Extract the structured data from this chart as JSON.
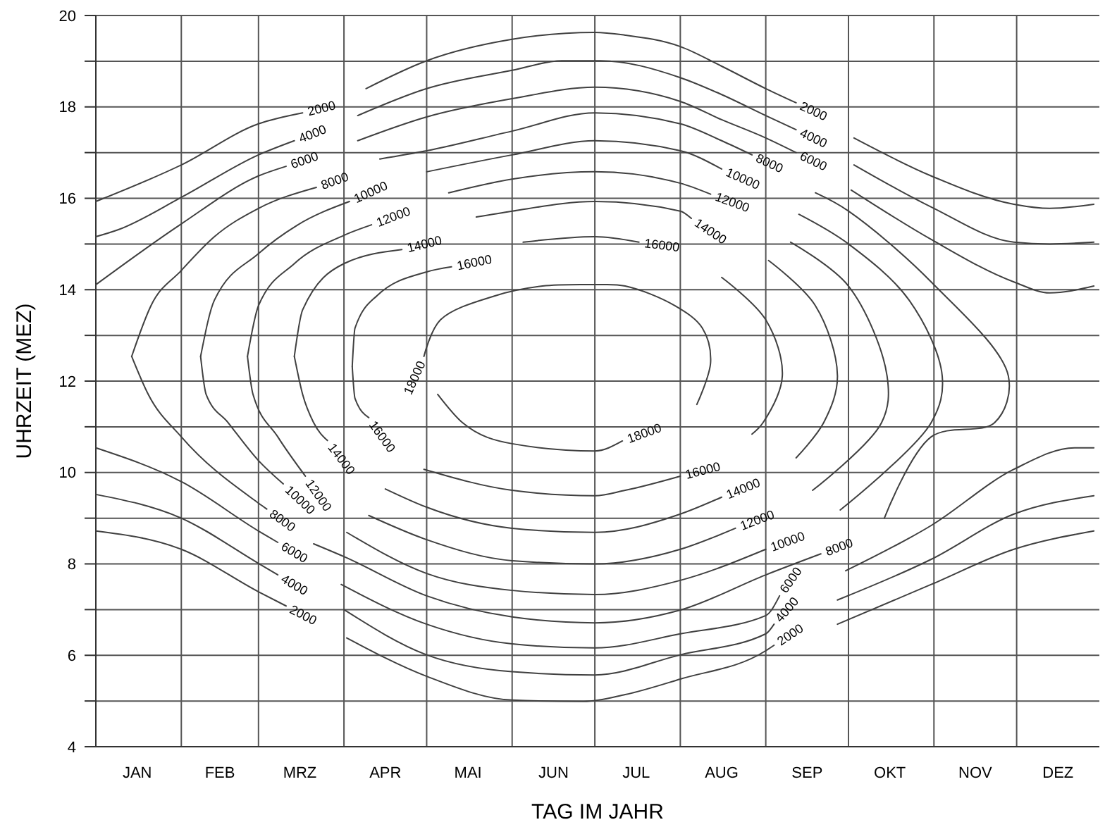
{
  "chart_data": {
    "type": "line",
    "xlabel": "TAG IM JAHR",
    "ylabel": "UHRZEIT (MEZ)",
    "xlim": [
      "--01-01",
      "--12-31"
    ],
    "ylim": [
      4,
      20
    ],
    "xticks": [
      {
        "value": "--01-01",
        "label": null
      },
      {
        "value": "--01-16",
        "label": "JAN"
      },
      {
        "value": "--02-01",
        "label": null
      },
      {
        "value": "--02-15",
        "label": "FEB"
      },
      {
        "value": "--03-01",
        "label": null
      },
      {
        "value": "--03-16",
        "label": "MRZ"
      },
      {
        "value": "--04-01",
        "label": null
      },
      {
        "value": "--04-16",
        "label": "APR"
      },
      {
        "value": "--05-01",
        "label": null
      },
      {
        "value": "--05-16",
        "label": "MAI"
      },
      {
        "value": "--06-01",
        "label": null
      },
      {
        "value": "--06-16",
        "label": "JUN"
      },
      {
        "value": "--07-01",
        "label": null
      },
      {
        "value": "--07-16",
        "label": "JUL"
      },
      {
        "value": "--08-01",
        "label": null
      },
      {
        "value": "--08-16",
        "label": "AUG"
      },
      {
        "value": "--09-01",
        "label": null
      },
      {
        "value": "--09-16",
        "label": "SEP"
      },
      {
        "value": "--10-01",
        "label": null
      },
      {
        "value": "--10-16",
        "label": "OKT"
      },
      {
        "value": "--11-01",
        "label": null
      },
      {
        "value": "--11-16",
        "label": "NOV"
      },
      {
        "value": "--12-01",
        "label": null
      },
      {
        "value": "--12-16",
        "label": "DEZ"
      }
    ],
    "yticks": [
      4,
      {
        "value": 5,
        "label": null
      },
      6,
      {
        "value": 7,
        "label": null
      },
      8,
      {
        "value": 9,
        "label": null
      },
      10,
      {
        "value": 11,
        "label": null
      },
      12,
      {
        "value": 13,
        "label": null
      },
      14,
      {
        "value": 15,
        "label": null
      },
      16,
      {
        "value": 17,
        "label": null
      },
      18,
      {
        "value": 19,
        "label": null
      },
      20
    ],
    "grid": true,
    "series": [
      {
        "name": "2000",
        "color": "#404040",
        "x": [
          "--01-01",
          "--02-01",
          "--03-01",
          "--03-17"
        ],
        "values": [
          15.93,
          16.73,
          17.63,
          17.87
        ]
      },
      {
        "name": "4000",
        "color": "#404040",
        "x": [
          "--01-01",
          "--01-09",
          "--02-01",
          "--03-01",
          "--03-14"
        ],
        "values": [
          15.16,
          15.31,
          16.02,
          16.95,
          17.26
        ]
      },
      {
        "name": "6000",
        "color": "#404040",
        "x": [
          "--01-01",
          "--02-01",
          "--03-01",
          "--03-11"
        ],
        "values": [
          14.11,
          15.44,
          16.49,
          16.7
        ]
      },
      {
        "name": "8000",
        "color": "#404040",
        "x": [
          "--01-14",
          "--01-21",
          "--02-01",
          "--02-13",
          "--03-01",
          "--03-22"
        ],
        "values": [
          12.54,
          13.65,
          14.42,
          15.16,
          15.78,
          16.24
        ]
      },
      {
        "name": "8000",
        "color": "#404040",
        "x": [
          "--01-14",
          "--01-20",
          "--02-01",
          "--03-01",
          "--03-04"
        ],
        "values": [
          12.54,
          11.71,
          10.78,
          9.33,
          9.2
        ]
      },
      {
        "name": "10000",
        "color": "#404040",
        "x": [
          "--02-08",
          "--02-13",
          "--03-01",
          "--03-15",
          "--04-03"
        ],
        "values": [
          12.54,
          13.77,
          14.79,
          15.41,
          15.93
        ]
      },
      {
        "name": "10000",
        "color": "#404040",
        "x": [
          "--02-08",
          "--02-10",
          "--02-18",
          "--03-01",
          "--03-10"
        ],
        "values": [
          12.54,
          11.71,
          11.09,
          10.26,
          9.75
        ]
      },
      {
        "name": "12000",
        "color": "#404040",
        "x": [
          "--02-25",
          "--03-01",
          "--03-14",
          "--04-01",
          "--04-11"
        ],
        "values": [
          12.54,
          13.65,
          14.57,
          15.19,
          15.42
        ]
      },
      {
        "name": "12000",
        "color": "#404040",
        "x": [
          "--02-25",
          "--02-27",
          "--03-08",
          "--03-18"
        ],
        "values": [
          12.54,
          11.71,
          10.78,
          9.92
        ]
      },
      {
        "name": "14000",
        "color": "#404040",
        "x": [
          "--03-14",
          "--03-17",
          "--04-01",
          "--04-22"
        ],
        "values": [
          12.54,
          13.56,
          14.57,
          14.88
        ]
      },
      {
        "name": "14000",
        "color": "#404040",
        "x": [
          "--03-14",
          "--03-17",
          "--03-21",
          "--03-26"
        ],
        "values": [
          12.54,
          11.71,
          11.09,
          10.7
        ]
      },
      {
        "name": "16000",
        "color": "#404040",
        "x": [
          "--04-04",
          "--04-05",
          "--04-13",
          "--05-01",
          "--05-10"
        ],
        "values": [
          12.32,
          13.16,
          13.87,
          14.39,
          14.5
        ]
      },
      {
        "name": "16000",
        "color": "#404040",
        "x": [
          "--04-04",
          "--04-05",
          "--04-10"
        ],
        "values": [
          12.32,
          11.62,
          11.2
        ]
      },
      {
        "name": "2000",
        "color": "#404040",
        "x": [
          "--01-01",
          "--02-01",
          "--03-01",
          "--03-11"
        ],
        "values": [
          8.72,
          8.32,
          7.39,
          7.08
        ]
      },
      {
        "name": "4000",
        "color": "#404040",
        "x": [
          "--01-01",
          "--02-01",
          "--03-01",
          "--03-08"
        ],
        "values": [
          9.52,
          9,
          8.01,
          7.76
        ]
      },
      {
        "name": "6000",
        "color": "#404040",
        "x": [
          "--01-01",
          "--02-01",
          "--03-01",
          "--03-08"
        ],
        "values": [
          10.54,
          9.8,
          8.72,
          8.47
        ]
      },
      {
        "name": "18000",
        "color": "#404040",
        "x": [
          "--08-07",
          "--08-12",
          "--08-09",
          "--07-30",
          "--07-12",
          "--07-01",
          "--06-12",
          "--05-26",
          "--05-06",
          "--04-30"
        ],
        "values": [
          11.49,
          12.42,
          13.16,
          13.65,
          14.08,
          14.11,
          14.08,
          13.87,
          13.34,
          12.54
        ]
      },
      {
        "name": "18000",
        "color": "#404040",
        "x": [
          "--05-05",
          "--05-14",
          "--06-01",
          "--07-01",
          "--07-11"
        ],
        "values": [
          11.71,
          11.09,
          10.63,
          10.47,
          10.69
        ]
      },
      {
        "name": "2000",
        "color": "#404040",
        "x": [
          "--04-09",
          "--05-01",
          "--06-01",
          "--07-01",
          "--07-12",
          "--08-01",
          "--08-16",
          "--09-01",
          "--09-12"
        ],
        "values": [
          18.4,
          19.01,
          19.48,
          19.63,
          19.57,
          19.32,
          18.89,
          18.4,
          18.09
        ]
      },
      {
        "name": "4000",
        "color": "#404040",
        "x": [
          "--04-06",
          "--05-01",
          "--06-01",
          "--06-19",
          "--07-03",
          "--08-01",
          "--08-16",
          "--09-01",
          "--09-12"
        ],
        "values": [
          17.81,
          18.4,
          18.8,
          19.01,
          19.01,
          18.64,
          18.27,
          17.81,
          17.5
        ]
      },
      {
        "name": "6000",
        "color": "#404040",
        "x": [
          "--04-06",
          "--05-01",
          "--06-01",
          "--07-01",
          "--08-01",
          "--08-16",
          "--09-01",
          "--09-12"
        ],
        "values": [
          17.26,
          17.78,
          18.18,
          18.43,
          18.12,
          17.72,
          17.32,
          17
        ]
      },
      {
        "name": "8000",
        "color": "#404040",
        "x": [
          "--04-14",
          "--05-01",
          "--06-01",
          "--07-01",
          "--08-01",
          "--08-16",
          "--08-27"
        ],
        "values": [
          16.86,
          17.04,
          17.47,
          17.87,
          17.63,
          17.26,
          16.95
        ]
      },
      {
        "name": "10000",
        "color": "#404040",
        "x": [
          "--05-01",
          "--06-01",
          "--07-01",
          "--08-01",
          "--08-16"
        ],
        "values": [
          16.58,
          16.95,
          17.26,
          17.04,
          16.64
        ]
      },
      {
        "name": "12000",
        "color": "#404040",
        "x": [
          "--05-09",
          "--06-01",
          "--07-01",
          "--08-01",
          "--08-12"
        ],
        "values": [
          16.12,
          16.42,
          16.58,
          16.33,
          16.09
        ]
      },
      {
        "name": "14000",
        "color": "#404040",
        "x": [
          "--05-19",
          "--06-01",
          "--07-01",
          "--08-01",
          "--08-05"
        ],
        "values": [
          15.59,
          15.72,
          15.93,
          15.72,
          15.56
        ]
      },
      {
        "name": "16000",
        "color": "#404040",
        "x": [
          "--06-05",
          "--07-01",
          "--07-17"
        ],
        "values": [
          15.04,
          15.16,
          15.04
        ]
      },
      {
        "name": "16000",
        "color": "#404040",
        "x": [
          "--04-30",
          "--06-01",
          "--07-01",
          "--07-12",
          "--08-01"
        ],
        "values": [
          10.07,
          9.61,
          9.49,
          9.61,
          9.92
        ]
      },
      {
        "name": "14000",
        "color": "#404040",
        "x": [
          "--04-16",
          "--05-01",
          "--06-01",
          "--07-01",
          "--08-01",
          "--08-16"
        ],
        "values": [
          9.64,
          9.24,
          8.78,
          8.69,
          9.09,
          9.46
        ]
      },
      {
        "name": "12000",
        "color": "#404040",
        "x": [
          "--04-10",
          "--05-01",
          "--06-01",
          "--07-01",
          "--08-01",
          "--08-21"
        ],
        "values": [
          9.06,
          8.53,
          8.07,
          8,
          8.32,
          8.78
        ]
      },
      {
        "name": "10000",
        "color": "#404040",
        "x": [
          "--04-02",
          "--05-01",
          "--06-01",
          "--07-01",
          "--08-01",
          "--09-01"
        ],
        "values": [
          8.69,
          7.79,
          7.42,
          7.33,
          7.64,
          8.32
        ]
      },
      {
        "name": "8000",
        "color": "#404040",
        "x": [
          "--03-21",
          "--04-01",
          "--05-01",
          "--06-01",
          "--07-01",
          "--08-01",
          "--09-01",
          "--09-21"
        ],
        "values": [
          8.44,
          8.16,
          7.3,
          6.84,
          6.71,
          6.99,
          7.76,
          8.22
        ]
      },
      {
        "name": "6000",
        "color": "#404040",
        "x": [
          "--03-31",
          "--05-01",
          "--06-01",
          "--07-01",
          "--08-01",
          "--09-01",
          "--09-06"
        ],
        "values": [
          7.55,
          6.68,
          6.25,
          6.16,
          6.47,
          6.87,
          7.3
        ]
      },
      {
        "name": "4000",
        "color": "#404040",
        "x": [
          "--04-01",
          "--05-01",
          "--06-01",
          "--07-01",
          "--08-01",
          "--09-01",
          "--09-04"
        ],
        "values": [
          7,
          6.01,
          5.64,
          5.57,
          6.01,
          6.47,
          6.68
        ]
      },
      {
        "name": "2000",
        "color": "#404040",
        "x": [
          "--04-02",
          "--05-01",
          "--06-01",
          "--06-27",
          "--07-12",
          "--08-01",
          "--09-01",
          "--09-04"
        ],
        "values": [
          6.38,
          5.54,
          5.02,
          4.99,
          5.14,
          5.48,
          6.1,
          6.22
        ]
      },
      {
        "color": "#404040",
        "x": [
          "--08-16",
          "--09-01",
          "--09-07",
          "--08-31",
          "--08-27"
        ],
        "values": [
          14.27,
          13.34,
          12.11,
          11.09,
          10.84
        ]
      },
      {
        "color": "#404040",
        "x": [
          "--09-02",
          "--09-19",
          "--09-27",
          "--09-22",
          "--09-12"
        ],
        "values": [
          14.64,
          13.65,
          12.11,
          11.09,
          10.32
        ]
      },
      {
        "color": "#404040",
        "x": [
          "--09-10",
          "--10-01",
          "--10-15",
          "--10-13",
          "--09-18"
        ],
        "values": [
          15.04,
          14.08,
          12.11,
          11.09,
          9.61
        ]
      },
      {
        "color": "#404040",
        "x": [
          "--09-13",
          "--10-01",
          "--10-23",
          "--11-04",
          "--10-31",
          "--09-28"
        ],
        "values": [
          15.65,
          15,
          13.77,
          12.11,
          11.09,
          9.18
        ]
      },
      {
        "color": "#404040",
        "x": [
          "--09-19",
          "--10-01",
          "--10-31",
          "--11-28",
          "--11-23",
          "--10-31",
          "--10-14"
        ],
        "values": [
          16.12,
          15.72,
          14.17,
          12.11,
          11.09,
          10.78,
          9
        ]
      },
      {
        "color": "#404040",
        "x": [
          "--10-03",
          "--10-31",
          "--11-30",
          "--12-13",
          "--12-29"
        ],
        "values": [
          17.32,
          16.49,
          15.87,
          15.78,
          15.87
        ]
      },
      {
        "color": "#404040",
        "x": [
          "--10-03",
          "--10-31",
          "--11-30",
          "--12-13",
          "--12-29"
        ],
        "values": [
          16.73,
          15.81,
          15.04,
          15,
          15.04
        ]
      },
      {
        "color": "#404040",
        "x": [
          "--10-02",
          "--10-31",
          "--11-30",
          "--12-13",
          "--12-29"
        ],
        "values": [
          16.18,
          15.1,
          14.17,
          13.93,
          14.08
        ]
      },
      {
        "color": "#404040",
        "x": [
          "--09-30",
          "--10-31",
          "--11-30",
          "--12-22",
          "--12-29"
        ],
        "values": [
          7.85,
          8.84,
          10.07,
          10.54,
          10.54
        ]
      },
      {
        "color": "#404040",
        "x": [
          "--09-27",
          "--10-31",
          "--11-30",
          "--12-29"
        ],
        "values": [
          7.21,
          8.1,
          9.09,
          9.49
        ]
      },
      {
        "color": "#404040",
        "x": [
          "--09-27",
          "--10-31",
          "--11-30",
          "--12-29"
        ],
        "values": [
          6.68,
          7.55,
          8.32,
          8.72
        ]
      }
    ]
  }
}
